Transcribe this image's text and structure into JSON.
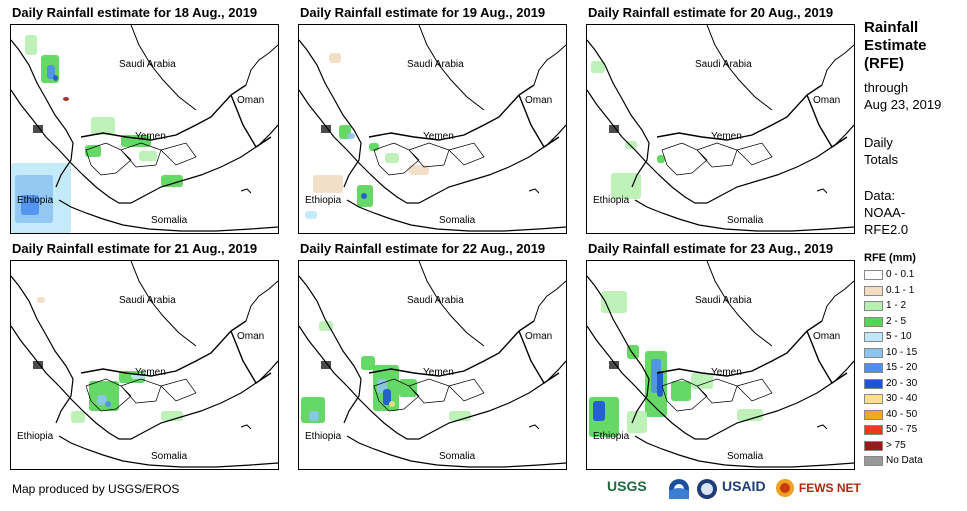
{
  "panels": [
    {
      "title": "Daily Rainfall estimate for 18 Aug., 2019"
    },
    {
      "title": "Daily Rainfall estimate for 19 Aug., 2019"
    },
    {
      "title": "Daily Rainfall estimate for 20 Aug., 2019"
    },
    {
      "title": "Daily Rainfall estimate for 21 Aug., 2019"
    },
    {
      "title": "Daily Rainfall estimate for 22 Aug., 2019"
    },
    {
      "title": "Daily Rainfall estimate for 23 Aug., 2019"
    }
  ],
  "map_labels": {
    "saudi": "Saudi Arabia",
    "oman": "Oman",
    "yemen": "Yemen",
    "ethiopia": "Ethiopia",
    "somalia": "Somalia"
  },
  "side": {
    "title_lines": [
      "Rainfall",
      "Estimate",
      "(RFE)"
    ],
    "through_lines": [
      "through",
      "Aug 23, 2019"
    ],
    "daily_lines": [
      "Daily",
      "Totals"
    ],
    "data_lines": [
      "Data:",
      "NOAA-",
      "RFE2.0"
    ]
  },
  "legend": {
    "title": "RFE (mm)",
    "items": [
      {
        "label": "0 - 0.1",
        "color": "#ffffff"
      },
      {
        "label": "0.1 - 1",
        "color": "#f2dcc2"
      },
      {
        "label": "1 - 2",
        "color": "#b6f0b0"
      },
      {
        "label": "2 - 5",
        "color": "#55d455"
      },
      {
        "label": "5 - 10",
        "color": "#bfe8f8"
      },
      {
        "label": "10 - 15",
        "color": "#8cc4f0"
      },
      {
        "label": "15 - 20",
        "color": "#4e8ff0"
      },
      {
        "label": "20 - 30",
        "color": "#1d55d6"
      },
      {
        "label": "30 - 40",
        "color": "#fae08a"
      },
      {
        "label": "40 - 50",
        "color": "#f5a623"
      },
      {
        "label": "50 - 75",
        "color": "#e83a1c"
      },
      {
        "label": "> 75",
        "color": "#9e1a1a"
      },
      {
        "label": "No Data",
        "color": "#999999"
      }
    ]
  },
  "credit": "Map produced by USGS/EROS",
  "logos": {
    "usgs": "USGS",
    "usaid": "USAID",
    "fewsnet": "FEWS NET"
  }
}
